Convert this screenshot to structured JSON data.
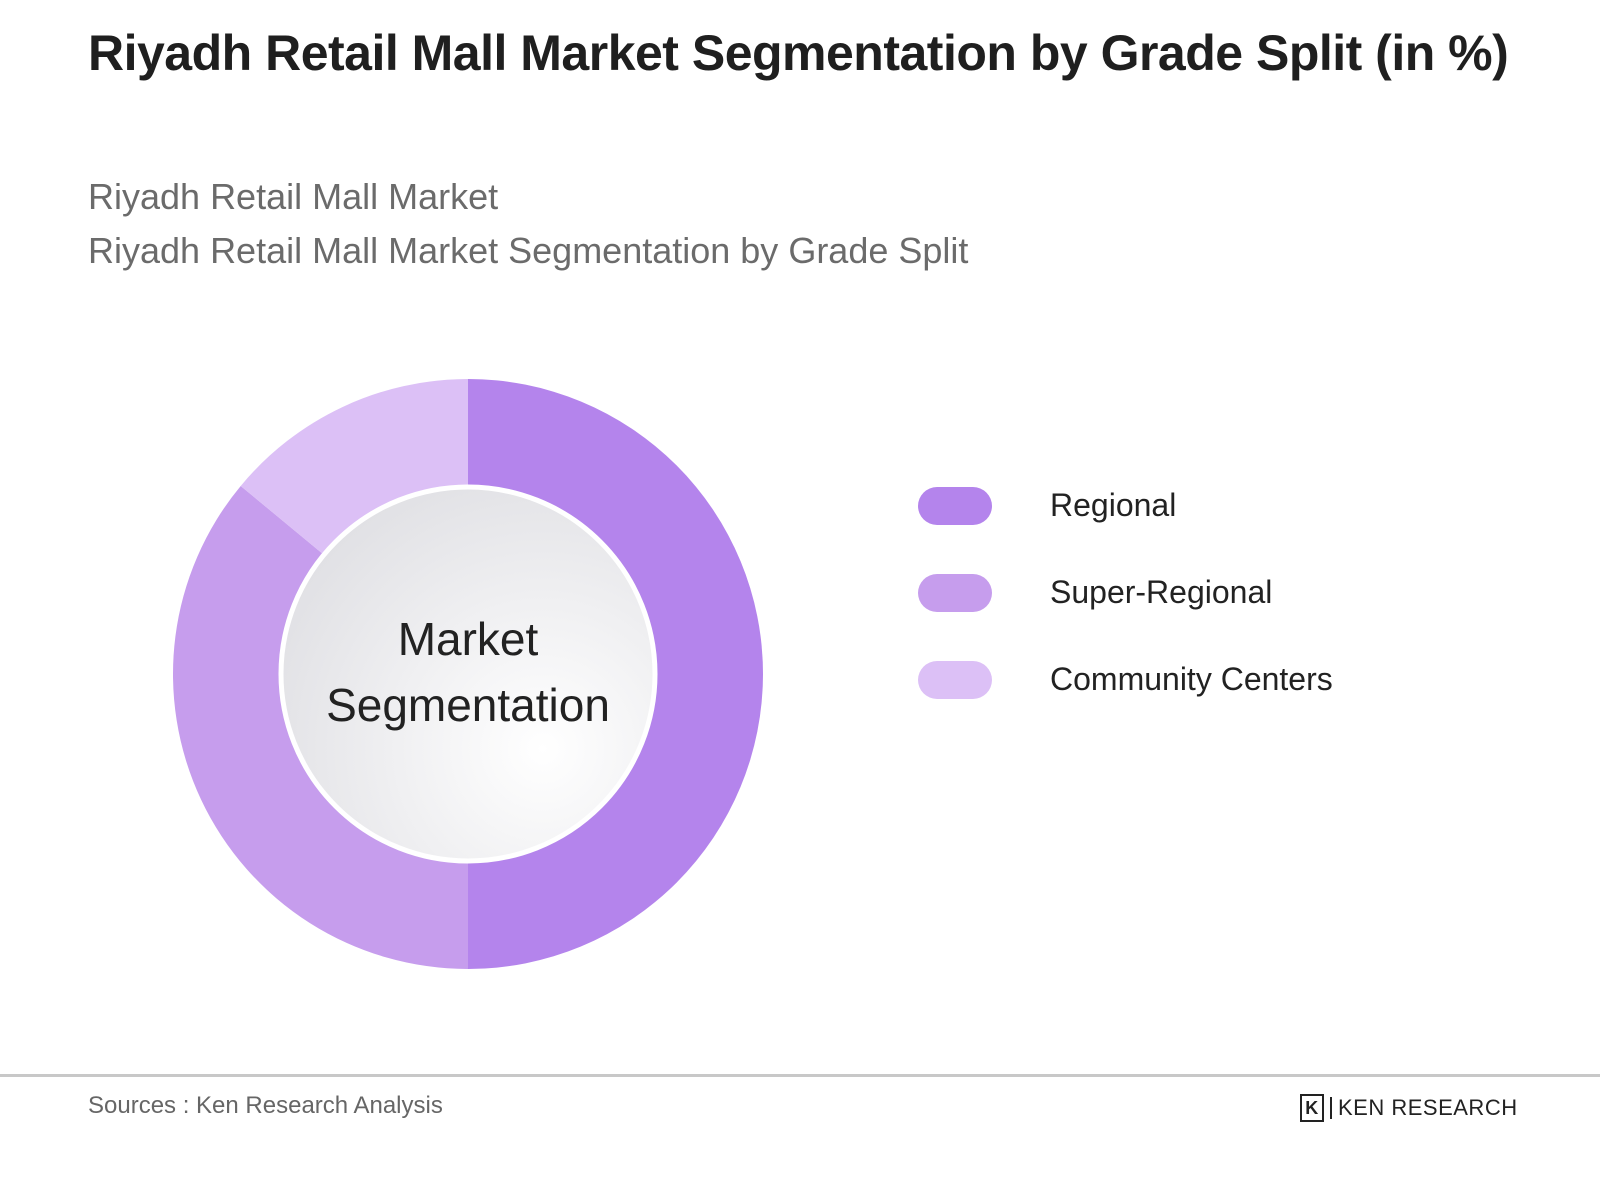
{
  "header": {
    "title": "Riyadh Retail Mall Market Segmentation by Grade Split (in %)",
    "subtitle_1": "Riyadh Retail Mall Market",
    "subtitle_2": "Riyadh Retail Mall Market Segmentation by Grade Split"
  },
  "chart_data": {
    "type": "pie",
    "variant": "donut",
    "title": "Riyadh Retail Mall Market Segmentation by Grade Split (in %)",
    "center_label_1": "Market",
    "center_label_2": "Segmentation",
    "categories": [
      "Regional",
      "Super-Regional",
      "Community Centers"
    ],
    "values": [
      50,
      36,
      14
    ],
    "colors": [
      "#b484ec",
      "#c69ded",
      "#dcc0f6"
    ],
    "legend_position": "right"
  },
  "footer": {
    "source": "Sources : Ken Research Analysis",
    "logo_text": "KEN RESEARCH",
    "logo_mark": "K"
  }
}
